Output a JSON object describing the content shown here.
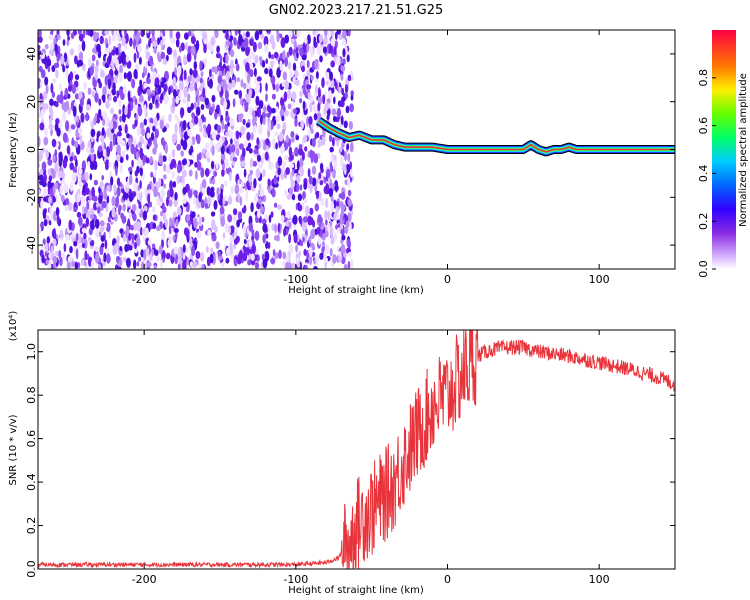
{
  "title": "GN02.2023.217.21.51.G25",
  "colors": {
    "noise": "#6a1ee6",
    "trace_core": "#e8333a",
    "snr_line": "#e8333a",
    "axis": "#000000"
  },
  "chart_data": [
    {
      "type": "heatmap",
      "xlabel": "Height of straight line (km)",
      "ylabel": "Frequency (Hz)",
      "xlim": [
        -270,
        150
      ],
      "ylim": [
        -50,
        50
      ],
      "xticks": [
        -200,
        -100,
        0,
        100
      ],
      "yticks": [
        -40,
        -20,
        0,
        20,
        40
      ],
      "noise_region_x": [
        -270,
        -68
      ],
      "colorbar": {
        "label": "Normalized spectral amplitude",
        "range": [
          0.0,
          1.0
        ],
        "ticks": [
          0.0,
          0.2,
          0.4,
          0.6,
          0.8
        ]
      },
      "peak_trace": {
        "x": [
          -85,
          -78,
          -72,
          -65,
          -58,
          -50,
          -42,
          -35,
          -28,
          -20,
          -10,
          0,
          10,
          30,
          50,
          55,
          60,
          65,
          70,
          75,
          80,
          85,
          100,
          150
        ],
        "y": [
          12,
          9,
          7,
          5,
          6,
          4,
          4,
          2,
          1,
          1,
          1,
          0,
          0,
          0,
          0,
          2,
          0,
          -1,
          0,
          0,
          1,
          0,
          0,
          0
        ]
      }
    },
    {
      "type": "line",
      "xlabel": "Height of straight line (km)",
      "ylabel": "SNR (10 * v/v)",
      "y_multiplier": "(x10⁴)",
      "xlim": [
        -270,
        150
      ],
      "ylim": [
        0.0,
        1.1
      ],
      "xticks": [
        -200,
        -100,
        0,
        100
      ],
      "yticks": [
        0.0,
        0.2,
        0.4,
        0.6,
        0.8,
        1.0
      ],
      "series": [
        {
          "x": [
            -270,
            -200,
            -100,
            -80,
            -72,
            -65,
            -60,
            -55,
            -50,
            -45,
            -40,
            -35,
            -30,
            -25,
            -20,
            -15,
            -10,
            -5,
            0,
            5,
            10,
            15,
            20,
            25,
            30,
            40,
            50,
            60,
            80,
            100,
            120,
            140,
            150
          ],
          "values": [
            0.02,
            0.02,
            0.02,
            0.03,
            0.05,
            0.12,
            0.2,
            0.25,
            0.27,
            0.31,
            0.35,
            0.4,
            0.48,
            0.55,
            0.62,
            0.68,
            0.75,
            0.78,
            0.8,
            0.85,
            0.9,
            0.95,
            0.98,
            1.0,
            1.01,
            1.02,
            1.02,
            1.0,
            0.98,
            0.95,
            0.92,
            0.88,
            0.85
          ]
        }
      ]
    }
  ]
}
